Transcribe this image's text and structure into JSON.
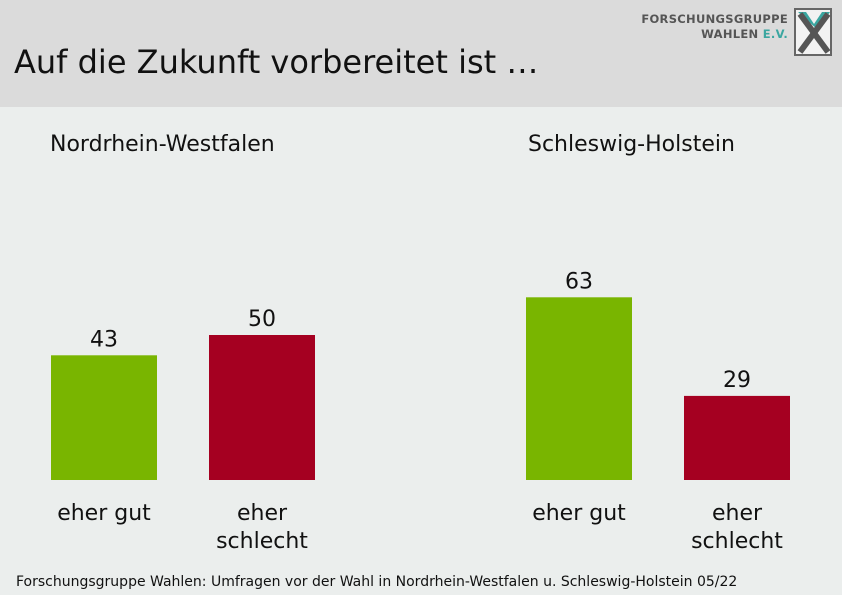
{
  "header": {
    "title": "Auf die Zukunft vorbereitet ist …",
    "logo": {
      "line1": "FORSCHUNGSGRUPPE",
      "line2_a": "WAHLEN",
      "line2_b": "E.V.",
      "icon": "fgw-x-logo-icon"
    }
  },
  "footer": {
    "source": "Forschungsgruppe Wahlen: Umfragen vor der Wahl in Nordrhein-Westfalen u. Schleswig-Holstein 05/22"
  },
  "colors": {
    "eher_gut": "#79b500",
    "eher_schlecht": "#a50021",
    "header_bg": "#dbdbdb",
    "body_bg": "#ebeeed"
  },
  "chart_data": [
    {
      "type": "bar",
      "title": "Nordrhein-Westfalen",
      "categories": [
        [
          "eher gut"
        ],
        [
          "eher",
          "schlecht"
        ]
      ],
      "values": [
        43,
        50
      ],
      "colors": [
        "#79b500",
        "#a50021"
      ],
      "ylim": [
        0,
        100
      ],
      "grid": false,
      "xlabel": "",
      "ylabel": ""
    },
    {
      "type": "bar",
      "title": "Schleswig-Holstein",
      "categories": [
        [
          "eher gut"
        ],
        [
          "eher",
          "schlecht"
        ]
      ],
      "values": [
        63,
        29
      ],
      "colors": [
        "#79b500",
        "#a50021"
      ],
      "ylim": [
        0,
        100
      ],
      "grid": false,
      "xlabel": "",
      "ylabel": ""
    }
  ]
}
